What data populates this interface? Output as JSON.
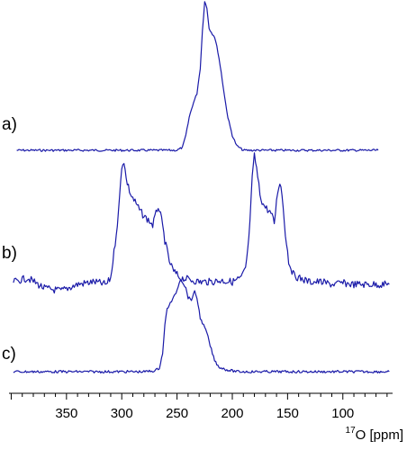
{
  "chart_data": {
    "type": "line",
    "xlabel_sup": "17",
    "xlabel_main": "O [ppm]",
    "xlim": [
      402,
      55
    ],
    "x_reversed": true,
    "xticks": [
      350,
      300,
      250,
      200,
      150,
      100
    ],
    "minor_tick_step": 10,
    "grid": false,
    "line_color": "#1a1aa8",
    "series": [
      {
        "label": "a)",
        "points": [
          [
            395,
            0.0
          ],
          [
            380,
            0.0
          ],
          [
            360,
            0.0
          ],
          [
            340,
            0.0
          ],
          [
            320,
            0.0
          ],
          [
            300,
            0.0
          ],
          [
            280,
            0.0
          ],
          [
            262,
            0.0
          ],
          [
            250,
            0.0
          ],
          [
            245,
            0.02
          ],
          [
            242,
            0.1
          ],
          [
            239,
            0.22
          ],
          [
            236,
            0.3
          ],
          [
            232,
            0.38
          ],
          [
            229,
            0.55
          ],
          [
            227,
            0.8
          ],
          [
            225,
            1.0
          ],
          [
            223,
            0.95
          ],
          [
            221,
            0.82
          ],
          [
            219,
            0.79
          ],
          [
            216,
            0.76
          ],
          [
            213,
            0.66
          ],
          [
            210,
            0.52
          ],
          [
            207,
            0.36
          ],
          [
            204,
            0.22
          ],
          [
            200,
            0.1
          ],
          [
            196,
            0.03
          ],
          [
            190,
            0.0
          ],
          [
            170,
            0.0
          ],
          [
            150,
            0.0
          ],
          [
            130,
            0.0
          ],
          [
            110,
            0.0
          ],
          [
            90,
            0.0
          ],
          [
            68,
            0.0
          ]
        ]
      },
      {
        "label": "b)",
        "points": [
          [
            398,
            0.02
          ],
          [
            385,
            0.05
          ],
          [
            370,
            -0.03
          ],
          [
            355,
            -0.05
          ],
          [
            340,
            0.0
          ],
          [
            325,
            0.02
          ],
          [
            314,
            0.0
          ],
          [
            310,
            0.05
          ],
          [
            307,
            0.25
          ],
          [
            303,
            0.55
          ],
          [
            300,
            0.92
          ],
          [
            298,
            0.96
          ],
          [
            296,
            0.82
          ],
          [
            292,
            0.7
          ],
          [
            288,
            0.64
          ],
          [
            284,
            0.58
          ],
          [
            280,
            0.53
          ],
          [
            276,
            0.5
          ],
          [
            272,
            0.46
          ],
          [
            269,
            0.55
          ],
          [
            267,
            0.61
          ],
          [
            264,
            0.5
          ],
          [
            261,
            0.34
          ],
          [
            257,
            0.18
          ],
          [
            253,
            0.1
          ],
          [
            247,
            0.05
          ],
          [
            240,
            0.04
          ],
          [
            230,
            0.02
          ],
          [
            220,
            0.02
          ],
          [
            210,
            0.03
          ],
          [
            200,
            0.02
          ],
          [
            192,
            0.05
          ],
          [
            188,
            0.12
          ],
          [
            185,
            0.35
          ],
          [
            182,
            0.82
          ],
          [
            180,
            1.0
          ],
          [
            178,
            0.9
          ],
          [
            175,
            0.7
          ],
          [
            172,
            0.62
          ],
          [
            168,
            0.58
          ],
          [
            165,
            0.55
          ],
          [
            162,
            0.48
          ],
          [
            159,
            0.72
          ],
          [
            157,
            0.8
          ],
          [
            155,
            0.7
          ],
          [
            152,
            0.4
          ],
          [
            149,
            0.18
          ],
          [
            145,
            0.08
          ],
          [
            140,
            0.05
          ],
          [
            130,
            0.02
          ],
          [
            120,
            0.02
          ],
          [
            110,
            0.0
          ],
          [
            100,
            0.01
          ],
          [
            90,
            0.0
          ],
          [
            80,
            0.0
          ],
          [
            70,
            0.0
          ],
          [
            58,
            0.0
          ]
        ]
      },
      {
        "label": "c)",
        "points": [
          [
            398,
            0.0
          ],
          [
            380,
            0.0
          ],
          [
            360,
            0.0
          ],
          [
            340,
            0.0
          ],
          [
            320,
            0.0
          ],
          [
            300,
            0.0
          ],
          [
            280,
            0.0
          ],
          [
            270,
            0.01
          ],
          [
            266,
            0.04
          ],
          [
            263,
            0.2
          ],
          [
            261,
            0.5
          ],
          [
            259,
            0.68
          ],
          [
            256,
            0.74
          ],
          [
            253,
            0.8
          ],
          [
            250,
            0.88
          ],
          [
            247,
            1.0
          ],
          [
            245,
            0.97
          ],
          [
            242,
            0.9
          ],
          [
            240,
            0.8
          ],
          [
            237,
            0.78
          ],
          [
            234,
            0.86
          ],
          [
            232,
            0.8
          ],
          [
            229,
            0.58
          ],
          [
            226,
            0.5
          ],
          [
            223,
            0.42
          ],
          [
            220,
            0.28
          ],
          [
            216,
            0.12
          ],
          [
            212,
            0.05
          ],
          [
            205,
            0.02
          ],
          [
            195,
            0.0
          ],
          [
            180,
            0.0
          ],
          [
            160,
            0.0
          ],
          [
            140,
            0.0
          ],
          [
            120,
            0.0
          ],
          [
            100,
            0.0
          ],
          [
            80,
            0.0
          ],
          [
            58,
            0.0
          ]
        ]
      }
    ]
  }
}
